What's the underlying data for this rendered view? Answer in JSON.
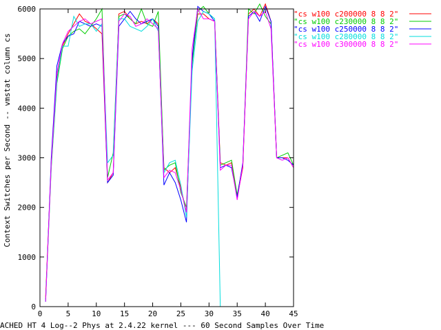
{
  "chart_data": {
    "type": "line",
    "title": "",
    "ylabel": "Context Switches per Second -- vmstat column cs",
    "xlabel": "ACHED HT 4 Log--2 Phys at 2.4.22 kernel --- 60 Second Samples Over Time",
    "xlim": [
      0,
      45
    ],
    "ylim": [
      0,
      6000
    ],
    "x_ticks": [
      0,
      5,
      10,
      15,
      20,
      25,
      30,
      35,
      40,
      45
    ],
    "y_ticks": [
      0,
      1000,
      2000,
      3000,
      4000,
      5000,
      6000
    ],
    "grid": false,
    "legend": "top-right",
    "series": [
      {
        "name": "\"cs w100 c200000 8 8 2\"",
        "color": "#ff0000",
        "x": [
          1,
          2,
          3,
          4,
          5,
          6,
          7,
          8,
          9,
          10,
          11,
          12,
          13,
          14,
          15,
          16,
          17,
          18,
          19,
          20,
          21,
          22,
          23,
          24,
          25,
          26,
          27,
          28,
          29,
          30,
          31,
          32,
          33,
          34,
          35,
          36,
          37,
          38,
          39,
          40,
          41,
          42,
          43,
          44,
          45
        ],
        "y": [
          200,
          2900,
          4600,
          5250,
          5500,
          5700,
          5900,
          5750,
          5700,
          5600,
          5500,
          2500,
          2700,
          5900,
          5950,
          5800,
          5700,
          5750,
          5700,
          5800,
          5700,
          2800,
          2700,
          2800,
          2400,
          1900,
          5000,
          5900,
          5900,
          5800,
          5750,
          2900,
          2850,
          2900,
          2200,
          2800,
          5900,
          6000,
          5850,
          6100,
          5750,
          3000,
          3000,
          3000,
          2800
        ]
      },
      {
        "name": "\"cs w100 c230000 8 8 2\"",
        "color": "#00cc00",
        "x": [
          1,
          2,
          3,
          4,
          5,
          6,
          7,
          8,
          9,
          10,
          11,
          12,
          13,
          14,
          15,
          16,
          17,
          18,
          19,
          20,
          21,
          22,
          23,
          24,
          25,
          26,
          27,
          28,
          29,
          30,
          31,
          32,
          33,
          34,
          35,
          36,
          37,
          38,
          39,
          40,
          41,
          42,
          43,
          44,
          45
        ],
        "y": [
          150,
          2800,
          4500,
          5200,
          5450,
          5550,
          5600,
          5500,
          5650,
          5800,
          6000,
          2600,
          3100,
          5850,
          5900,
          5800,
          5700,
          6000,
          5700,
          5650,
          5950,
          2750,
          2850,
          2900,
          2300,
          2000,
          4900,
          5950,
          6050,
          5900,
          5800,
          2850,
          2900,
          2950,
          2250,
          2850,
          6000,
          5900,
          6100,
          5850,
          5700,
          3000,
          3050,
          3100,
          2850
        ]
      },
      {
        "name": "\"cs w100 c250000 8 8 2\"",
        "color": "#0000ff",
        "x": [
          1,
          2,
          3,
          4,
          5,
          6,
          7,
          8,
          9,
          10,
          11,
          12,
          13,
          14,
          15,
          16,
          17,
          18,
          19,
          20,
          21,
          22,
          23,
          24,
          25,
          26,
          27,
          28,
          29,
          30,
          31,
          32,
          33,
          34,
          35,
          36,
          37,
          38,
          39,
          40,
          41,
          42,
          43,
          44,
          45
        ],
        "y": [
          100,
          3000,
          4850,
          5300,
          5450,
          5500,
          5750,
          5700,
          5650,
          5700,
          5650,
          2500,
          2650,
          5650,
          5800,
          5950,
          5800,
          5700,
          5750,
          5800,
          5650,
          2450,
          2700,
          2500,
          2150,
          1700,
          5000,
          6050,
          5950,
          5900,
          5750,
          2800,
          2850,
          2800,
          2200,
          2900,
          5850,
          5950,
          5750,
          6050,
          5750,
          3000,
          3000,
          2950,
          2850
        ]
      },
      {
        "name": "\"cs w100 c280000 8 8 2\"",
        "color": "#00dddd",
        "x": [
          1,
          2,
          3,
          4,
          5,
          6,
          7,
          8,
          9,
          10,
          11,
          12,
          13,
          14,
          15,
          16,
          17,
          18,
          19,
          20,
          21,
          22,
          23,
          24,
          25,
          26,
          27,
          28,
          29,
          30,
          31,
          32,
          33,
          34,
          35,
          36,
          37,
          38,
          39,
          40,
          41,
          42,
          43,
          44,
          45
        ],
        "y": [
          100,
          2850,
          4550,
          5250,
          5250,
          5850,
          5650,
          5700,
          5700,
          5550,
          5700,
          2900,
          3050,
          5800,
          5800,
          5650,
          5600,
          5550,
          5650,
          5800,
          5550,
          2700,
          2900,
          2950,
          2450,
          1800,
          4750,
          5750,
          5950,
          5900,
          5800,
          0,
          0,
          0,
          0,
          0,
          0,
          0,
          0,
          0,
          0,
          0,
          0,
          0,
          0
        ]
      },
      {
        "name": "\"cs w100 c300000 8 8 2\"",
        "color": "#ff00ff",
        "x": [
          1,
          2,
          3,
          4,
          5,
          6,
          7,
          8,
          9,
          10,
          11,
          12,
          13,
          14,
          15,
          16,
          17,
          18,
          19,
          20,
          21,
          22,
          23,
          24,
          25,
          26,
          27,
          28,
          29,
          30,
          31,
          32,
          33,
          34,
          35,
          36,
          37,
          38,
          39,
          40,
          41,
          42,
          43,
          44,
          45
        ],
        "y": [
          100,
          2900,
          4700,
          5300,
          5550,
          5650,
          5750,
          5800,
          5700,
          5750,
          5800,
          2550,
          2700,
          5750,
          5900,
          5850,
          5650,
          5700,
          5800,
          5700,
          5600,
          2600,
          2750,
          2700,
          2350,
          1900,
          5200,
          6000,
          5800,
          5800,
          5750,
          2750,
          2850,
          2850,
          2150,
          2850,
          5800,
          5950,
          5850,
          5950,
          5600,
          3000,
          2950,
          3000,
          2800
        ]
      }
    ]
  }
}
